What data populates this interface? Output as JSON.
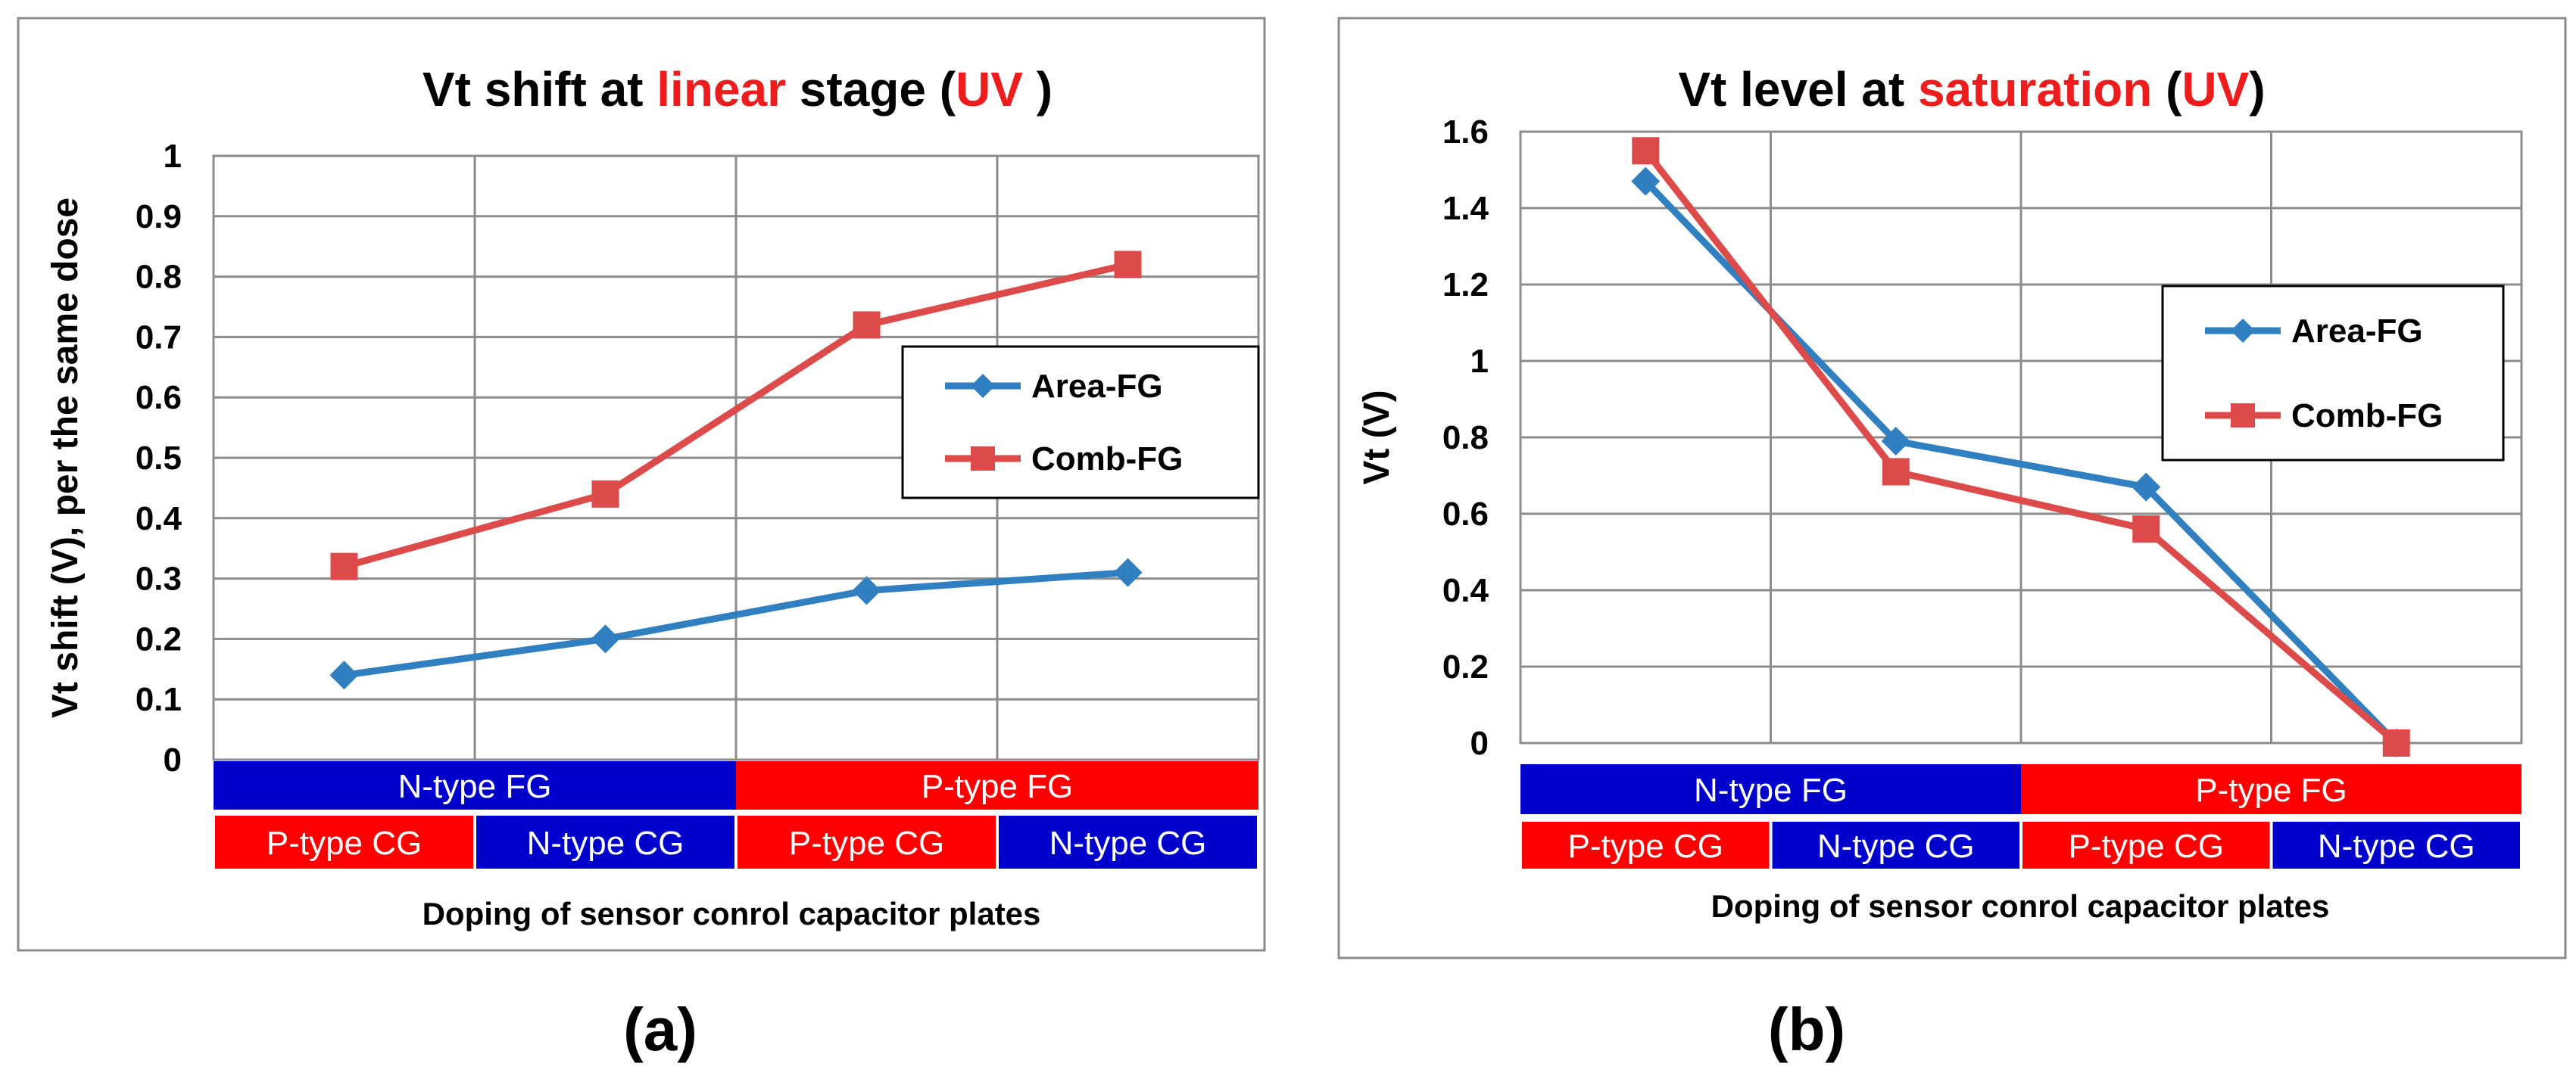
{
  "chart_data": [
    {
      "type": "line",
      "caption": "(a)",
      "title": "Vt shift at linear stage (UV )",
      "title_parts": [
        {
          "text": "Vt shift at ",
          "color": "#000000"
        },
        {
          "text": "linear",
          "color": "#ee1c1c"
        },
        {
          "text": " stage (",
          "color": "#000000"
        },
        {
          "text": "UV",
          "color": "#ee1c1c"
        },
        {
          "text": " )",
          "color": "#000000"
        }
      ],
      "ylabel": "Vt shift (V), per the same dose",
      "xlabel": "Doping of sensor conrol capacitor plates",
      "ylim": [
        0,
        1
      ],
      "yticks": [
        0,
        0.1,
        0.2,
        0.3,
        0.4,
        0.5,
        0.6,
        0.7,
        0.8,
        0.9,
        1
      ],
      "ytick_labels": [
        "0",
        "0.1",
        "0.2",
        "0.3",
        "0.4",
        "0.5",
        "0.6",
        "0.7",
        "0.8",
        "0.9",
        "1"
      ],
      "categories": [
        "P-type CG",
        "N-type CG",
        "P-type CG",
        "N-type CG"
      ],
      "category_colors": [
        "#ff0000",
        "#0000cc",
        "#ff0000",
        "#0000cc"
      ],
      "groups": [
        {
          "label": "N-type FG",
          "color": "#0000cc"
        },
        {
          "label": "P-type FG",
          "color": "#ff0000"
        }
      ],
      "series": [
        {
          "name": "Area-FG",
          "color": "#2f7fc1",
          "marker": "diamond",
          "values": [
            0.14,
            0.2,
            0.28,
            0.31
          ]
        },
        {
          "name": "Comb-FG",
          "color": "#dd4a4a",
          "marker": "square",
          "values": [
            0.32,
            0.44,
            0.72,
            0.82
          ]
        }
      ],
      "legend_position": "right"
    },
    {
      "type": "line",
      "caption": "(b)",
      "title": "Vt level at saturation (UV)",
      "title_parts": [
        {
          "text": "Vt level at ",
          "color": "#000000"
        },
        {
          "text": "saturation",
          "color": "#ee1c1c"
        },
        {
          "text": " (",
          "color": "#000000"
        },
        {
          "text": "UV",
          "color": "#ee1c1c"
        },
        {
          "text": ")",
          "color": "#000000"
        }
      ],
      "ylabel": "Vt (V)",
      "xlabel": "Doping of sensor conrol capacitor plates",
      "ylim": [
        0,
        1.6
      ],
      "yticks": [
        0,
        0.2,
        0.4,
        0.6,
        0.8,
        1,
        1.2,
        1.4,
        1.6
      ],
      "ytick_labels": [
        "0",
        "0.2",
        "0.4",
        "0.6",
        "0.8",
        "1",
        "1.2",
        "1.4",
        "1.6"
      ],
      "categories": [
        "P-type CG",
        "N-type CG",
        "P-type CG",
        "N-type CG"
      ],
      "category_colors": [
        "#ff0000",
        "#0000cc",
        "#ff0000",
        "#0000cc"
      ],
      "groups": [
        {
          "label": "N-type FG",
          "color": "#0000cc"
        },
        {
          "label": "P-type FG",
          "color": "#ff0000"
        }
      ],
      "series": [
        {
          "name": "Area-FG",
          "color": "#2f7fc1",
          "marker": "diamond",
          "values": [
            1.47,
            0.79,
            0.67,
            0.0
          ]
        },
        {
          "name": "Comb-FG",
          "color": "#dd4a4a",
          "marker": "square",
          "values": [
            1.55,
            0.71,
            0.56,
            0.0
          ]
        }
      ],
      "legend_position": "top-right"
    }
  ]
}
